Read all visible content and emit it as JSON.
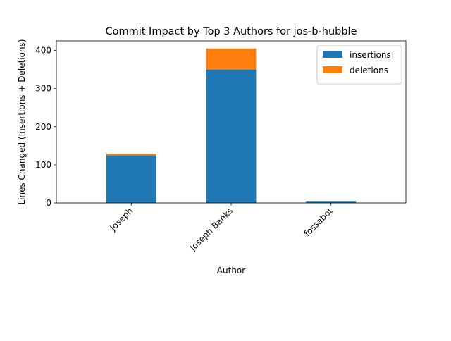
{
  "chart_data": {
    "type": "bar",
    "stacked": true,
    "title": "Commit Impact by Top 3 Authors for jos-b-hubble",
    "xlabel": "Author",
    "ylabel": "Lines Changed (Insertions + Deletions)",
    "categories": [
      "Joseph",
      "Joseph Banks",
      "fossabot"
    ],
    "series": [
      {
        "name": "insertions",
        "color": "#1f77b4",
        "values": [
          125,
          350,
          5
        ]
      },
      {
        "name": "deletions",
        "color": "#ff7f0e",
        "values": [
          4,
          55,
          0
        ]
      }
    ],
    "ylim": [
      0,
      425
    ],
    "yticks": [
      0,
      100,
      200,
      300,
      400
    ],
    "grid": false,
    "legend_position": "top-right"
  }
}
